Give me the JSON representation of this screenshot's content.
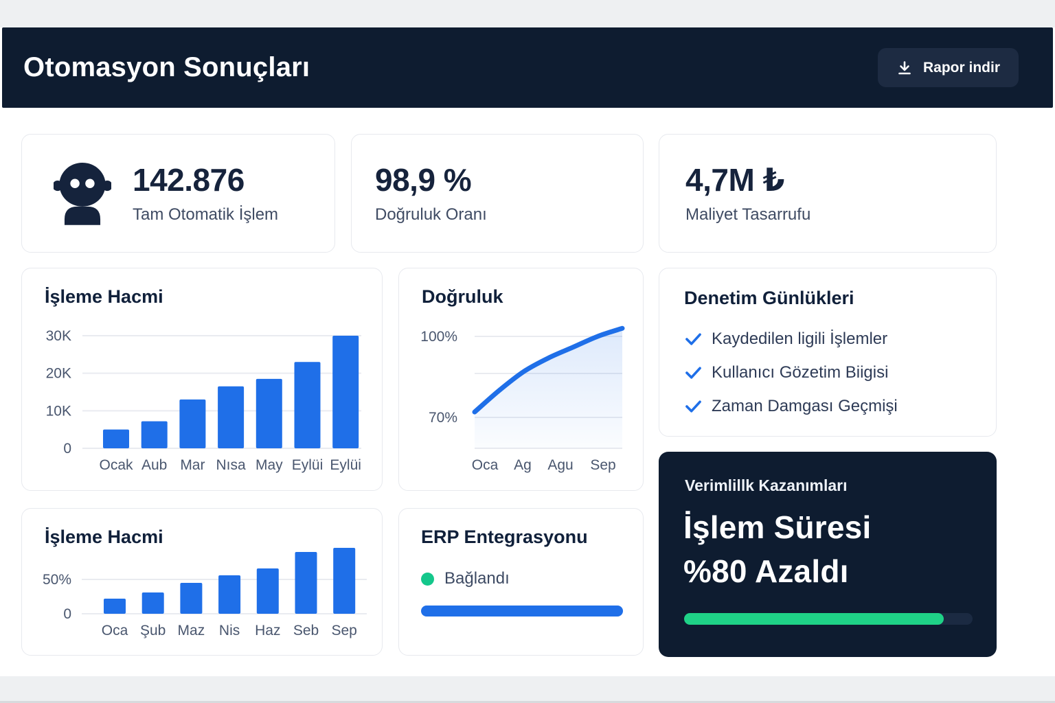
{
  "colors": {
    "accent_blue": "#1f6fe8",
    "navy": "#0e1c30",
    "green": "#1fd287",
    "status_green": "#14c78b",
    "text_dark": "#16233c",
    "text_muted": "#3f4b63"
  },
  "header": {
    "title": "Otomasyon Sonuçları",
    "download_button": {
      "label": "Rapor indir",
      "icon": "download-icon"
    }
  },
  "stats": [
    {
      "icon": "robot-icon",
      "value": "142.876",
      "label": "Tam Otomatik İşlem"
    },
    {
      "value": "98,9 %",
      "label": "Doğruluk Oranı"
    },
    {
      "value": "4,7M ₺",
      "label": "Maliyet Tasarrufu"
    }
  ],
  "audit": {
    "title": "Denetim Günlükleri",
    "items": [
      "Kaydedilen ligili İşlemler",
      "Kullanıcı Gözetim Biigisi",
      "Zaman Damgası Geçmişi"
    ]
  },
  "efficiency": {
    "title": "Verimlillk Kazanımları",
    "headline_line1": "İşlem Süresi",
    "headline_line2": "%80 Azaldı",
    "progress_pct": 90
  },
  "erp": {
    "title": "ERP Entegrasyonu",
    "status": "Bağlandı",
    "progress_pct": 100
  },
  "chart_data": [
    {
      "id": "volume_monthly",
      "type": "bar",
      "title": "İşleme Hacmi",
      "categories": [
        "Ocak",
        "Aub",
        "Mar",
        "Nısa",
        "May",
        "Eylüi",
        "Eylüi"
      ],
      "values": [
        5000,
        7200,
        13000,
        16500,
        18500,
        23000,
        30000
      ],
      "yticks": [
        {
          "label": "30K",
          "value": 30000
        },
        {
          "label": "20K",
          "value": 20000
        },
        {
          "label": "10K",
          "value": 10000
        },
        {
          "label": "0",
          "value": 0
        }
      ],
      "ylim": [
        0,
        30000
      ],
      "bar_color": "#1f6fe8",
      "grid": true,
      "legend": "none"
    },
    {
      "id": "accuracy_trend",
      "type": "line",
      "title": "Doğruluk",
      "x_labels": [
        "Oca",
        "Ag",
        "Agu",
        "Sep"
      ],
      "values_pct": [
        72,
        80,
        87,
        92,
        96,
        100,
        103
      ],
      "yticks": [
        {
          "label": "100%",
          "value": 100
        },
        {
          "label": "70%",
          "value": 70
        }
      ],
      "ylim": [
        55,
        105
      ],
      "line_color": "#1f6fe8",
      "area_fill": true,
      "grid": true,
      "legend": "none"
    },
    {
      "id": "volume_pct",
      "type": "bar",
      "title": "İşleme Hacmi",
      "categories": [
        "Oca",
        "Şub",
        "Maz",
        "Nis",
        "Haz",
        "Seb",
        "Sep"
      ],
      "values": [
        22,
        31,
        45,
        56,
        66,
        90,
        96
      ],
      "yticks": [
        {
          "label": "50%",
          "value": 50
        },
        {
          "label": "0",
          "value": 0
        }
      ],
      "ylim": [
        0,
        100
      ],
      "bar_color": "#1f6fe8",
      "grid": true,
      "legend": "none"
    }
  ]
}
